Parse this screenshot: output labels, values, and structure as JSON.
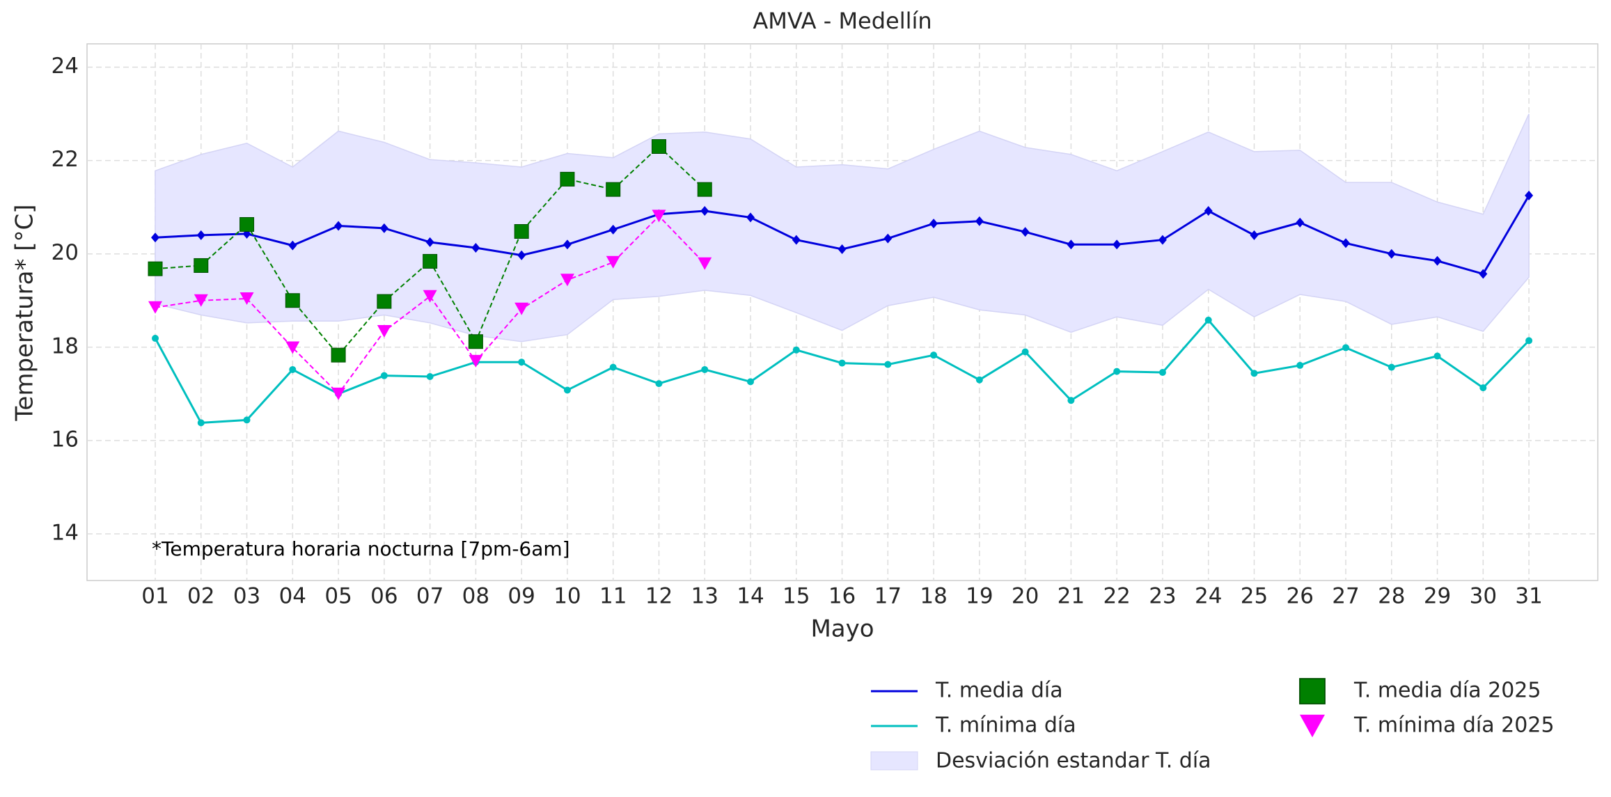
{
  "chart_data": {
    "type": "line",
    "title": "AMVA - Medellín",
    "xlabel": "Mayo",
    "ylabel": "Temperatura* [°C]",
    "annotation": "*Temperatura horaria nocturna [7pm-6am]",
    "categories": [
      "01",
      "02",
      "03",
      "04",
      "05",
      "06",
      "07",
      "08",
      "09",
      "10",
      "11",
      "12",
      "13",
      "14",
      "15",
      "16",
      "17",
      "18",
      "19",
      "20",
      "21",
      "22",
      "23",
      "24",
      "25",
      "26",
      "27",
      "28",
      "29",
      "30",
      "31"
    ],
    "ylim": [
      13,
      24.5
    ],
    "yticks": [
      14,
      16,
      18,
      20,
      22,
      24
    ],
    "grid": true,
    "band": {
      "name": "Desviación estandar T. día",
      "color": "#e6e6ff",
      "upper": [
        21.78,
        22.13,
        22.37,
        21.86,
        22.63,
        22.39,
        22.02,
        21.95,
        21.86,
        22.15,
        22.06,
        22.57,
        22.61,
        22.46,
        21.86,
        21.91,
        21.82,
        22.24,
        22.63,
        22.28,
        22.13,
        21.78,
        22.19,
        22.61,
        22.19,
        22.22,
        21.53,
        21.53,
        21.11,
        20.85,
        23.0
      ],
      "lower": [
        18.93,
        18.69,
        18.52,
        18.56,
        18.56,
        18.69,
        18.52,
        18.25,
        18.12,
        18.27,
        19.02,
        19.09,
        19.22,
        19.11,
        18.74,
        18.36,
        18.89,
        19.07,
        18.8,
        18.69,
        18.32,
        18.65,
        18.47,
        19.24,
        18.65,
        19.13,
        18.98,
        18.49,
        18.65,
        18.34,
        19.5
      ]
    },
    "series": [
      {
        "name": "T. media día",
        "color": "#0000dd",
        "marker": "diamond",
        "linestyle": "solid",
        "values": [
          20.35,
          20.4,
          20.43,
          20.18,
          20.6,
          20.55,
          20.25,
          20.13,
          19.97,
          20.2,
          20.52,
          20.85,
          20.92,
          20.78,
          20.3,
          20.1,
          20.33,
          20.65,
          20.7,
          20.47,
          20.2,
          20.2,
          20.3,
          20.92,
          20.4,
          20.67,
          20.23,
          20.0,
          19.85,
          19.57,
          21.25
        ]
      },
      {
        "name": "T. mínima día",
        "color": "#00bfbf",
        "marker": "circle",
        "linestyle": "solid",
        "values": [
          18.19,
          16.38,
          16.44,
          17.52,
          17.0,
          17.39,
          17.37,
          17.68,
          17.68,
          17.08,
          17.57,
          17.22,
          17.52,
          17.26,
          17.94,
          17.66,
          17.63,
          17.83,
          17.3,
          17.9,
          16.86,
          17.48,
          17.46,
          18.58,
          17.44,
          17.61,
          17.99,
          17.57,
          17.81,
          17.13,
          18.14
        ]
      },
      {
        "name": "T. media día 2025",
        "color": "#008000",
        "marker": "square",
        "linestyle": "dashed",
        "values": [
          19.68,
          19.75,
          20.63,
          19.0,
          17.83,
          18.98,
          19.84,
          18.12,
          20.48,
          21.6,
          21.38,
          22.3,
          21.38,
          null,
          null,
          null,
          null,
          null,
          null,
          null,
          null,
          null,
          null,
          null,
          null,
          null,
          null,
          null,
          null,
          null,
          null
        ]
      },
      {
        "name": "T. mínima día 2025",
        "color": "#ff00ff",
        "marker": "triangle-down",
        "linestyle": "dashed",
        "values": [
          18.85,
          19.0,
          19.04,
          17.99,
          17.0,
          18.34,
          19.09,
          17.7,
          18.82,
          19.44,
          19.82,
          20.81,
          19.79,
          null,
          null,
          null,
          null,
          null,
          null,
          null,
          null,
          null,
          null,
          null,
          null,
          null,
          null,
          null,
          null,
          null,
          null
        ]
      }
    ]
  }
}
